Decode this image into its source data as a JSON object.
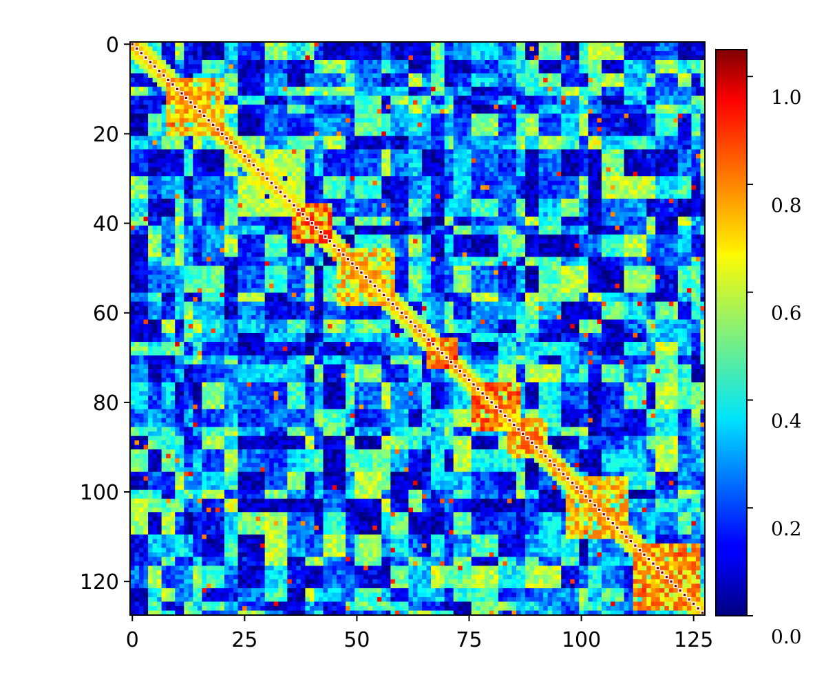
{
  "chart_data": {
    "type": "heatmap",
    "title": "",
    "xlabel": "",
    "ylabel": "",
    "matrix_size": 128,
    "xlim": [
      0,
      127
    ],
    "ylim": [
      127,
      0
    ],
    "x_ticks": [
      {
        "value": 0,
        "label": "0"
      },
      {
        "value": 25,
        "label": "25"
      },
      {
        "value": 50,
        "label": "50"
      },
      {
        "value": 75,
        "label": "75"
      },
      {
        "value": 100,
        "label": "100"
      },
      {
        "value": 125,
        "label": "125"
      }
    ],
    "y_ticks": [
      {
        "value": 0,
        "label": "0"
      },
      {
        "value": 20,
        "label": "20"
      },
      {
        "value": 40,
        "label": "40"
      },
      {
        "value": 60,
        "label": "60"
      },
      {
        "value": 80,
        "label": "80"
      },
      {
        "value": 100,
        "label": "100"
      },
      {
        "value": 120,
        "label": "120"
      }
    ],
    "colorbar": {
      "colormap": "jet",
      "vmin": 0.0,
      "vmax": 1.05,
      "ticks": [
        {
          "value": 0.0,
          "label": "0.0"
        },
        {
          "value": 0.2,
          "label": "0.2"
        },
        {
          "value": 0.4,
          "label": "0.4"
        },
        {
          "value": 0.6,
          "label": "0.6"
        },
        {
          "value": 0.8,
          "label": "0.8"
        },
        {
          "value": 1.0,
          "label": "1.0"
        }
      ],
      "placement": "right"
    },
    "diagonal_value": 1.0,
    "high_similarity_blocks": [
      {
        "rows": [
          8,
          20
        ],
        "cols": [
          8,
          20
        ],
        "value": 0.82
      },
      {
        "rows": [
          36,
          44
        ],
        "cols": [
          36,
          44
        ],
        "value": 0.9
      },
      {
        "rows": [
          46,
          58
        ],
        "cols": [
          46,
          58
        ],
        "value": 0.8
      },
      {
        "rows": [
          66,
          72
        ],
        "cols": [
          66,
          72
        ],
        "value": 0.85
      },
      {
        "rows": [
          76,
          86
        ],
        "cols": [
          76,
          86
        ],
        "value": 0.9
      },
      {
        "rows": [
          84,
          92
        ],
        "cols": [
          84,
          92
        ],
        "value": 0.85
      },
      {
        "rows": [
          97,
          110
        ],
        "cols": [
          97,
          110
        ],
        "value": 0.8
      },
      {
        "rows": [
          112,
          126
        ],
        "cols": [
          112,
          126
        ],
        "value": 0.85
      }
    ],
    "background_range": [
      0.05,
      0.6
    ]
  }
}
